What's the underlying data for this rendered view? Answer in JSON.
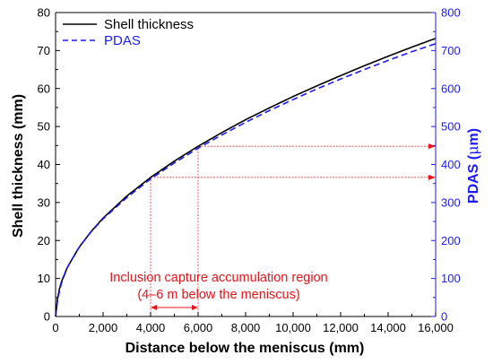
{
  "chart_data": {
    "type": "line",
    "xlabel": "Distance below the meniscus (mm)",
    "ylabel_left": "Shell thickness (mm)",
    "ylabel_right_prefix": "PDAS (",
    "ylabel_right_mu": "μ",
    "ylabel_right_suffix": "m)",
    "xlim": [
      0,
      16000
    ],
    "ylim_left": [
      0,
      80
    ],
    "ylim_right": [
      0,
      800
    ],
    "xticks": [
      0,
      2000,
      4000,
      6000,
      8000,
      10000,
      12000,
      14000,
      16000
    ],
    "xtick_labels": [
      "0",
      "2,000",
      "4,000",
      "6,000",
      "8,000",
      "10,000",
      "12,000",
      "14,000",
      "16,000"
    ],
    "yticks_left": [
      0,
      10,
      20,
      30,
      40,
      50,
      60,
      70,
      80
    ],
    "ytick_labels_left": [
      "0",
      "10",
      "20",
      "30",
      "40",
      "50",
      "60",
      "70",
      "80"
    ],
    "yticks_right": [
      0,
      100,
      200,
      300,
      400,
      500,
      600,
      700,
      800
    ],
    "ytick_labels_right": [
      "0",
      "100",
      "200",
      "300",
      "400",
      "500",
      "600",
      "700",
      "800"
    ],
    "grid": false,
    "legend_position": "top-left",
    "series": [
      {
        "name": "Shell thickness",
        "axis": "left",
        "color": "#000000",
        "style": "solid",
        "x": [
          0,
          100,
          250,
          500,
          1000,
          1500,
          2000,
          3000,
          4000,
          5000,
          6000,
          7000,
          8000,
          9000,
          10000,
          11000,
          12000,
          13000,
          14000,
          15000,
          16000
        ],
        "y": [
          0,
          5.8,
          9.2,
          13.0,
          18.3,
          22.4,
          25.9,
          31.7,
          36.6,
          40.9,
          44.8,
          48.4,
          51.8,
          54.9,
          57.9,
          60.7,
          63.4,
          66.0,
          68.5,
          70.9,
          73.2
        ]
      },
      {
        "name": "PDAS",
        "axis": "right",
        "color": "#1a1aff",
        "style": "dashed",
        "x": [
          0,
          100,
          250,
          500,
          1000,
          1500,
          2000,
          3000,
          4000,
          5000,
          6000,
          7000,
          8000,
          9000,
          10000,
          11000,
          12000,
          13000,
          14000,
          15000,
          16000
        ],
        "y": [
          0,
          50,
          88,
          130,
          183,
          223,
          257,
          313,
          362,
          404,
          443,
          478,
          511,
          542,
          571,
          599,
          625,
          650,
          674,
          697,
          718
        ]
      }
    ],
    "annotation": {
      "line1": "Inclusion capture accumulation region",
      "line2": "(4–6 m below the meniscus)",
      "color": "#e8141b",
      "x_start": 4000,
      "x_end": 6000
    }
  }
}
